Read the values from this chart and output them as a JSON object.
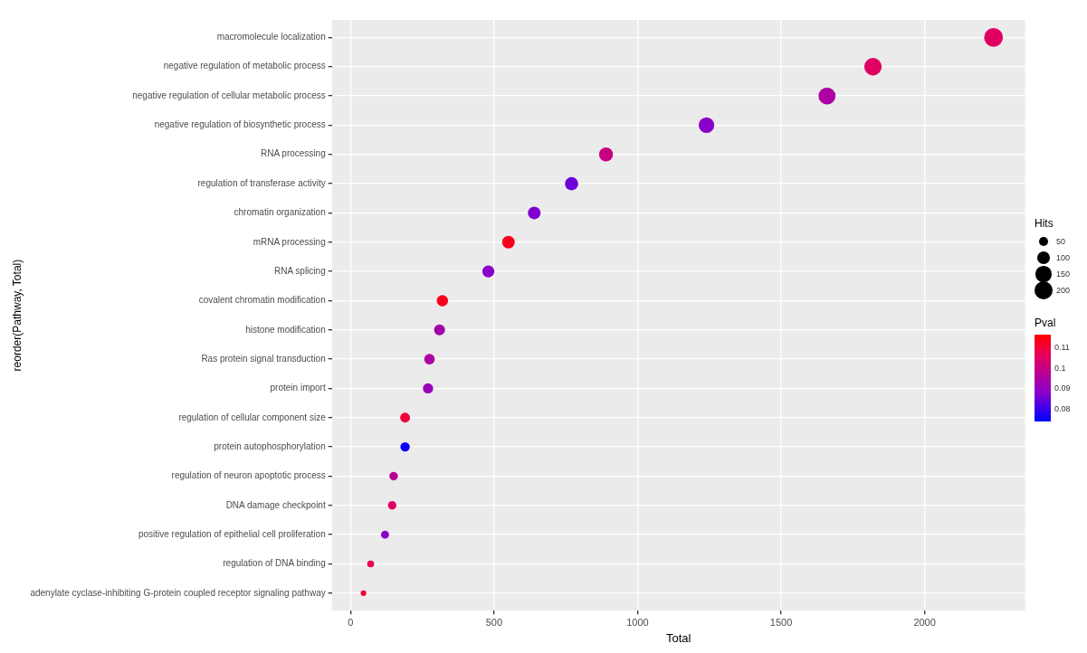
{
  "chart_data": {
    "type": "scatter",
    "orientation": "horizontal",
    "xlabel": "Total",
    "ylabel": "reorder(Pathway, Total)",
    "legend_title": "Hits",
    "clabel": "Pval",
    "categories": [
      "macromolecule localization",
      "negative regulation of metabolic process",
      "negative regulation of cellular metabolic process",
      "negative regulation of biosynthetic process",
      "RNA processing",
      "regulation of transferase activity",
      "chromatin organization",
      "mRNA processing",
      "RNA splicing",
      "covalent chromatin modification",
      "histone modification",
      "Ras protein signal transduction",
      "protein import",
      "regulation of cellular component size",
      "protein autophosphorylation",
      "regulation of neuron apoptotic process",
      "DNA damage checkpoint",
      "positive regulation of epithelial cell proliferation",
      "regulation of DNA binding",
      "adenylate cyclase-inhibiting G-protein coupled receptor signaling pathway"
    ],
    "values": [
      2240,
      1820,
      1660,
      1240,
      890,
      770,
      640,
      550,
      480,
      320,
      310,
      275,
      270,
      190,
      190,
      150,
      145,
      120,
      70,
      45
    ],
    "sizes": [
      220,
      190,
      180,
      150,
      120,
      110,
      100,
      100,
      90,
      80,
      75,
      70,
      65,
      60,
      55,
      45,
      45,
      40,
      30,
      20
    ],
    "size_legend": [
      50,
      100,
      150,
      200
    ],
    "cvalues": [
      0.105,
      0.105,
      0.095,
      0.088,
      0.1,
      0.085,
      0.087,
      0.113,
      0.088,
      0.113,
      0.093,
      0.095,
      0.091,
      0.11,
      0.075,
      0.097,
      0.105,
      0.088,
      0.107,
      0.11
    ],
    "clim": [
      0.074,
      0.116
    ],
    "cticks": [
      0.08,
      0.09,
      0.1,
      0.11
    ],
    "xlim": [
      -65,
      2350
    ],
    "xticks": [
      0,
      500,
      1000,
      1500,
      2000
    ],
    "grid": true
  }
}
